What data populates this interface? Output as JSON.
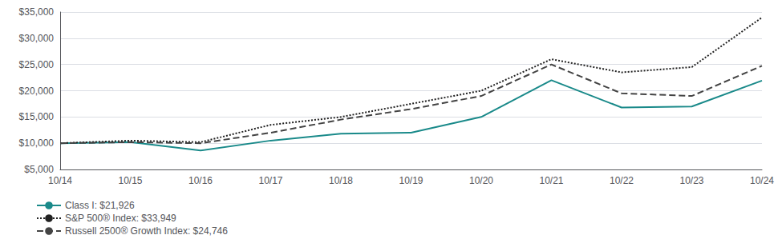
{
  "chart_data": {
    "type": "line",
    "categories": [
      "10/14",
      "10/15",
      "10/16",
      "10/17",
      "10/18",
      "10/19",
      "10/20",
      "10/21",
      "10/22",
      "10/23",
      "10/24"
    ],
    "series": [
      {
        "name": "Class I: $21,926",
        "color": "#1a8a8a",
        "line_style": "solid",
        "values": [
          10000,
          10200,
          8600,
          10500,
          11800,
          12000,
          15000,
          22000,
          16800,
          17000,
          21926
        ]
      },
      {
        "name": "S&P 500® Index: $33,949",
        "color": "#222222",
        "line_style": "dotted",
        "values": [
          10000,
          10500,
          10200,
          13500,
          15000,
          17500,
          20000,
          26000,
          23500,
          24500,
          33949
        ]
      },
      {
        "name": "Russell 2500® Growth Index: $24,746",
        "color": "#444444",
        "line_style": "dashed",
        "values": [
          10000,
          10200,
          10000,
          12000,
          14500,
          16500,
          19000,
          25000,
          19500,
          19000,
          24746
        ]
      }
    ],
    "ylim": [
      5000,
      35000
    ],
    "yticks": [
      {
        "value": 5000,
        "label": "$5,000"
      },
      {
        "value": 10000,
        "label": "$10,000"
      },
      {
        "value": 15000,
        "label": "$15,000"
      },
      {
        "value": 20000,
        "label": "$20,000"
      },
      {
        "value": 25000,
        "label": "$25,000"
      },
      {
        "value": 30000,
        "label": "$30,000"
      },
      {
        "value": 35000,
        "label": "$35,000"
      }
    ],
    "grid": true,
    "legend": "lower left"
  }
}
